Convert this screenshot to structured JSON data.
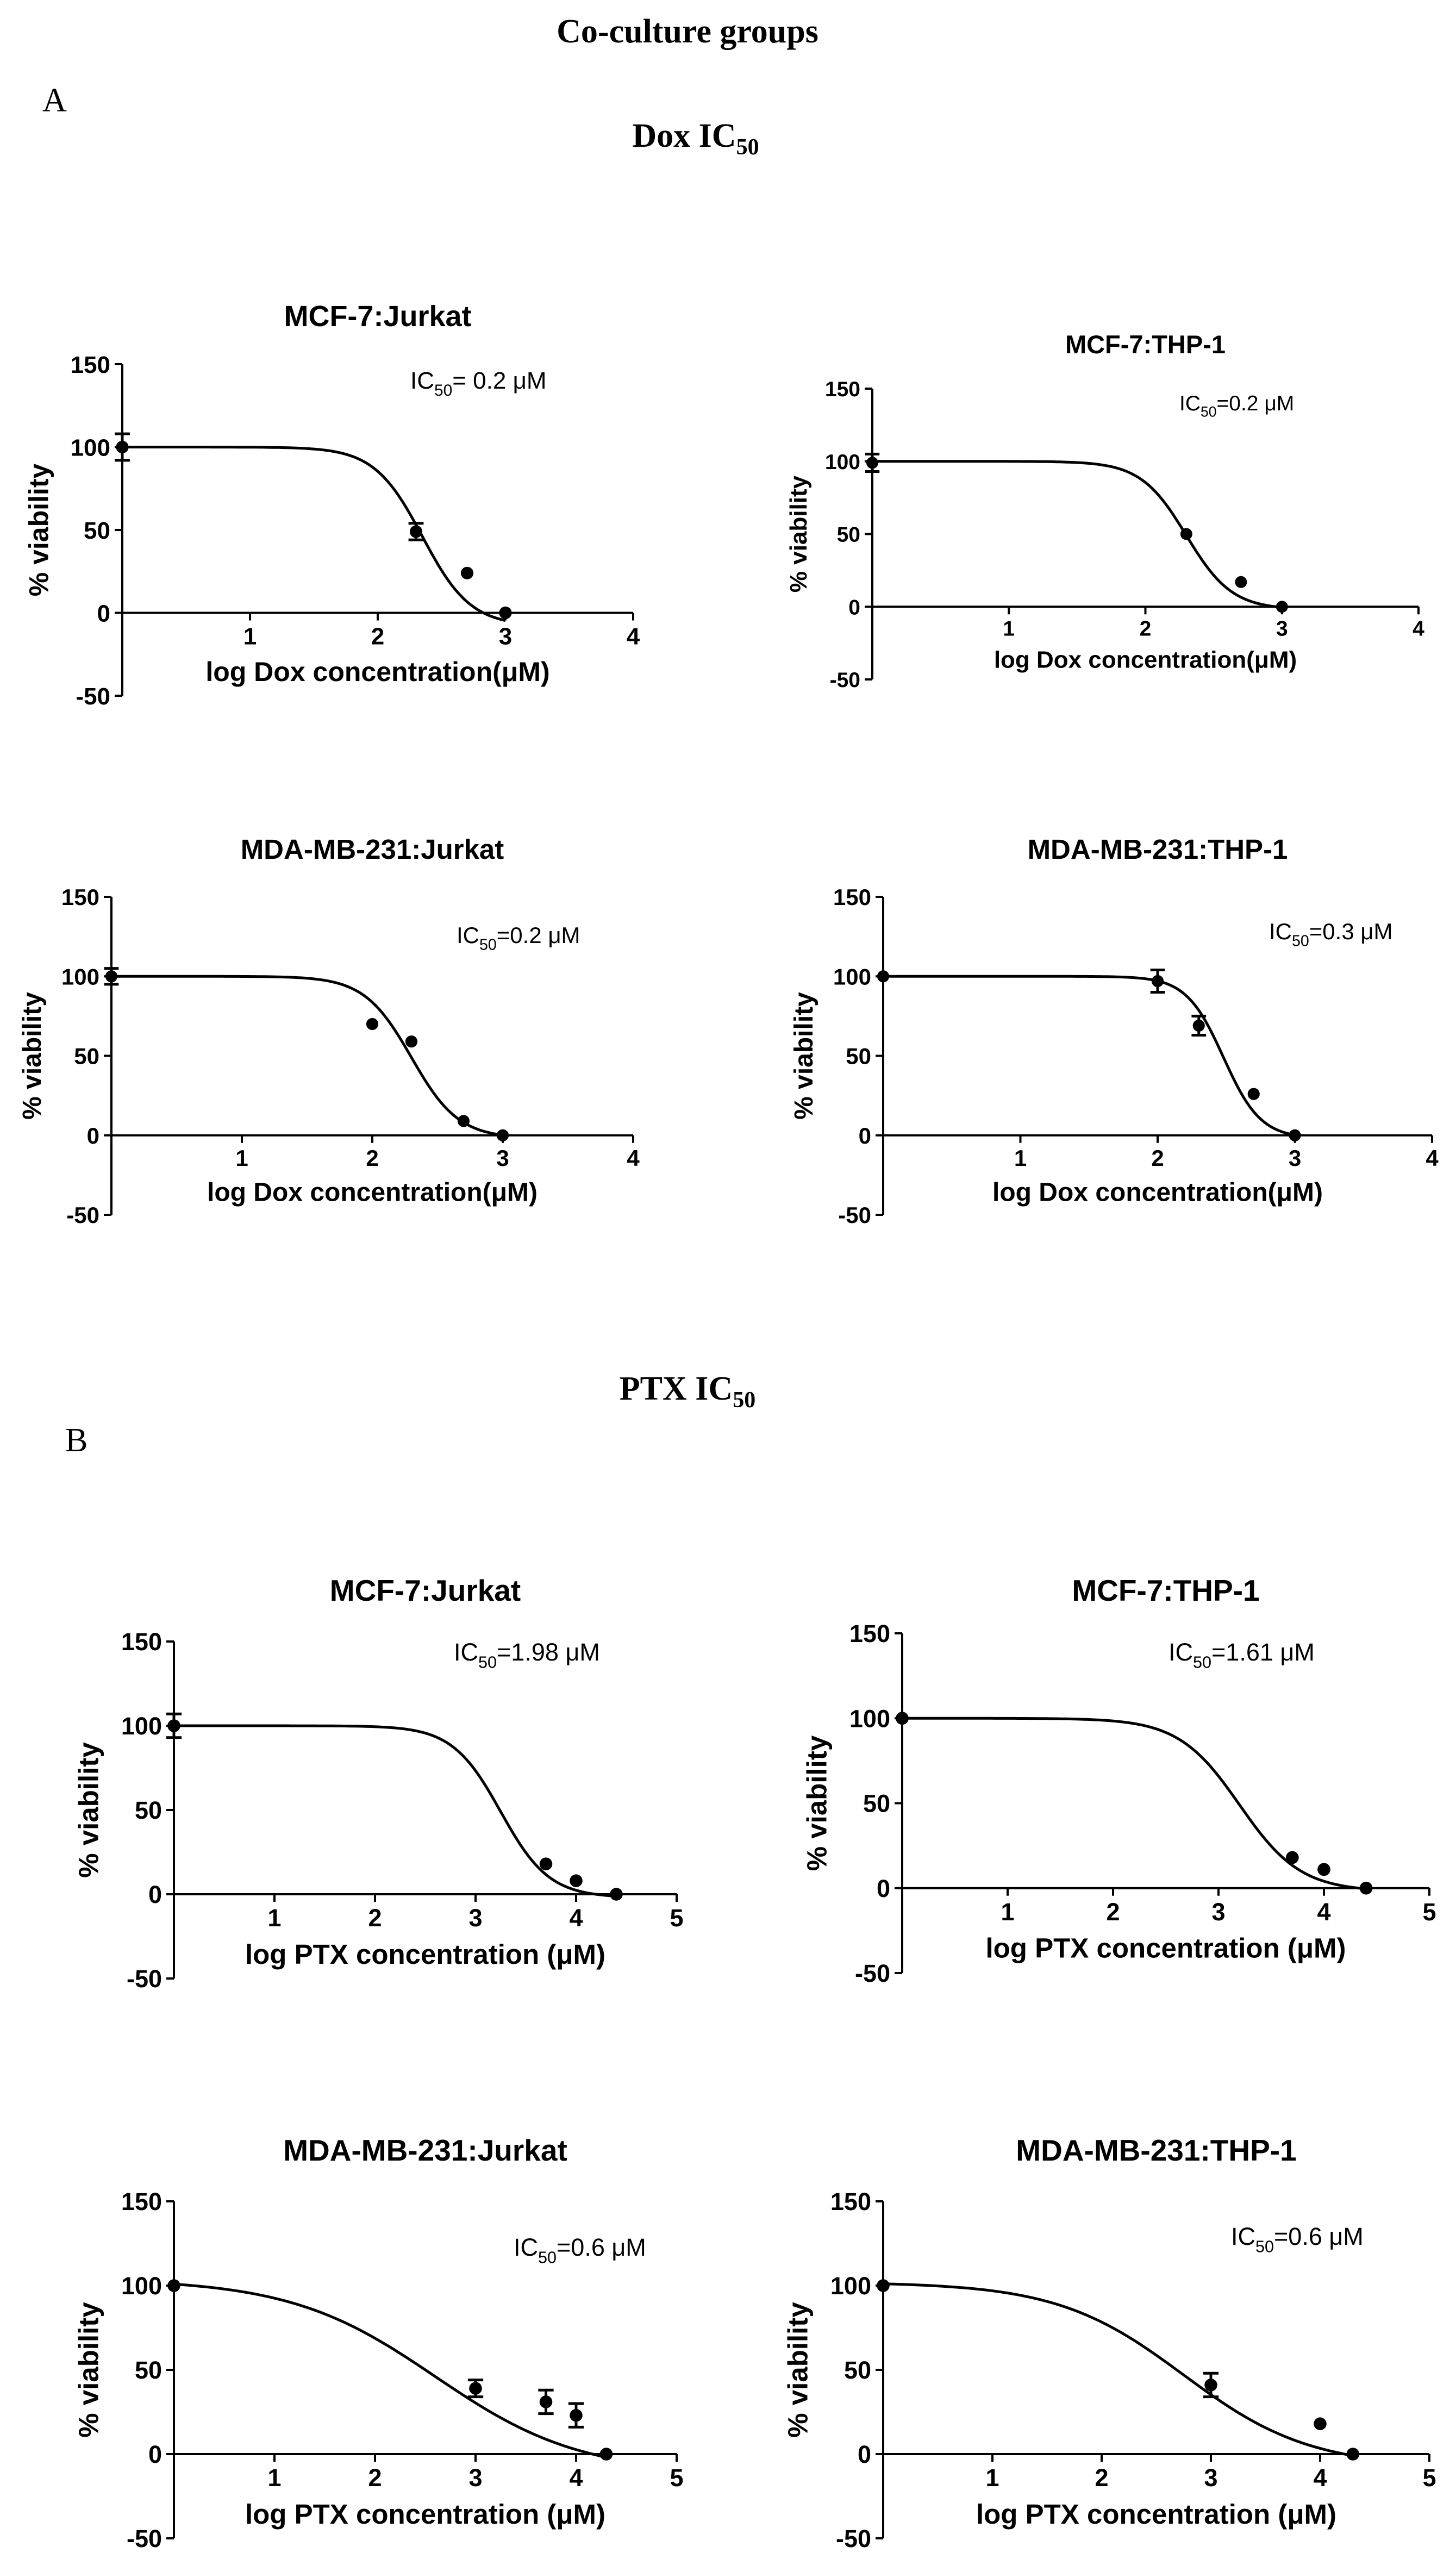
{
  "figure": {
    "title": "Co-culture groups",
    "sections": [
      {
        "label": "A",
        "heading": "Dox IC",
        "heading_sub": "50"
      },
      {
        "label": "B",
        "heading": "PTX IC",
        "heading_sub": "50"
      }
    ]
  },
  "chart_data": [
    {
      "id": "dox-mcf7-jurkat",
      "type": "scatter",
      "fit": "sigmoid",
      "title": "MCF-7:Jurkat",
      "xlabel": "log Dox concentration(μM)",
      "ylabel": "% viability",
      "ic50_label": "IC",
      "ic50_sub": "50",
      "ic50_value": "= 0.2 μM",
      "xlim": [
        0,
        4
      ],
      "ylim": [
        -50,
        150
      ],
      "xticks": [
        1,
        2,
        3,
        4
      ],
      "yticks": [
        -50,
        0,
        50,
        100,
        150
      ],
      "points": [
        {
          "x": 0,
          "y": 100,
          "err": 8
        },
        {
          "x": 2.3,
          "y": 49,
          "err": 5
        },
        {
          "x": 2.7,
          "y": 24,
          "err": 0
        },
        {
          "x": 3.0,
          "y": 0,
          "err": 0
        }
      ],
      "curve": {
        "top": 100,
        "bottom": -8,
        "ec50": 2.35,
        "slope": 2.3,
        "xmax": 3.0
      }
    },
    {
      "id": "dox-mcf7-thp1",
      "type": "scatter",
      "fit": "sigmoid",
      "title": "MCF-7:THP-1",
      "xlabel": "log Dox concentration(μM)",
      "ylabel": "% viability",
      "ic50_label": "IC",
      "ic50_sub": "50",
      "ic50_value": "=0.2 μM",
      "xlim": [
        0,
        4
      ],
      "ylim": [
        -50,
        150
      ],
      "xticks": [
        1,
        2,
        3,
        4
      ],
      "yticks": [
        -50,
        0,
        50,
        100,
        150
      ],
      "points": [
        {
          "x": 0,
          "y": 99,
          "err": 6
        },
        {
          "x": 2.3,
          "y": 50,
          "err": 0
        },
        {
          "x": 2.7,
          "y": 17,
          "err": 0
        },
        {
          "x": 3.0,
          "y": 0,
          "err": 0
        }
      ],
      "curve": {
        "top": 100,
        "bottom": -2,
        "ec50": 2.3,
        "slope": 2.6,
        "xmax": 3.0
      }
    },
    {
      "id": "dox-mda-jurkat",
      "type": "scatter",
      "fit": "sigmoid",
      "title": "MDA-MB-231:Jurkat",
      "xlabel": "log Dox concentration(μM)",
      "ylabel": "% viability",
      "ic50_label": "IC",
      "ic50_sub": "50",
      "ic50_value": "=0.2 μM",
      "xlim": [
        0,
        4
      ],
      "ylim": [
        -50,
        150
      ],
      "xticks": [
        1,
        2,
        3,
        4
      ],
      "yticks": [
        -50,
        0,
        50,
        100,
        150
      ],
      "points": [
        {
          "x": 0,
          "y": 100,
          "err": 5
        },
        {
          "x": 2.0,
          "y": 70,
          "err": 0
        },
        {
          "x": 2.3,
          "y": 59,
          "err": 0
        },
        {
          "x": 2.7,
          "y": 9,
          "err": 0
        },
        {
          "x": 3.0,
          "y": 0,
          "err": 0
        }
      ],
      "curve": {
        "top": 100,
        "bottom": -2,
        "ec50": 2.3,
        "slope": 2.4,
        "xmax": 3.0
      }
    },
    {
      "id": "dox-mda-thp1",
      "type": "scatter",
      "fit": "sigmoid",
      "title": "MDA-MB-231:THP-1",
      "xlabel": "log Dox concentration(μM)",
      "ylabel": "% viability",
      "ic50_label": "IC",
      "ic50_sub": "50",
      "ic50_value": "=0.3 μM",
      "xlim": [
        0,
        4
      ],
      "ylim": [
        -50,
        150
      ],
      "xticks": [
        1,
        2,
        3,
        4
      ],
      "yticks": [
        -50,
        0,
        50,
        100,
        150
      ],
      "points": [
        {
          "x": 0,
          "y": 100,
          "err": 0
        },
        {
          "x": 2.0,
          "y": 97,
          "err": 7
        },
        {
          "x": 2.3,
          "y": 69,
          "err": 6
        },
        {
          "x": 2.7,
          "y": 26,
          "err": 0
        },
        {
          "x": 3.0,
          "y": 0,
          "err": 0
        }
      ],
      "curve": {
        "top": 100,
        "bottom": -2,
        "ec50": 2.48,
        "slope": 3.2,
        "xmax": 3.0
      }
    },
    {
      "id": "ptx-mcf7-jurkat",
      "type": "scatter",
      "fit": "sigmoid",
      "title": "MCF-7:Jurkat",
      "xlabel": "log PTX concentration (μM)",
      "ylabel": "% viability",
      "ic50_label": "IC",
      "ic50_sub": "50",
      "ic50_value": "=1.98 μM",
      "xlim": [
        0,
        5
      ],
      "ylim": [
        -50,
        150
      ],
      "xticks": [
        1,
        2,
        3,
        4,
        5
      ],
      "yticks": [
        -50,
        0,
        50,
        100,
        150
      ],
      "points": [
        {
          "x": 0,
          "y": 100,
          "err": 7
        },
        {
          "x": 3.7,
          "y": 18,
          "err": 0
        },
        {
          "x": 4.0,
          "y": 8,
          "err": 0
        },
        {
          "x": 4.4,
          "y": 0,
          "err": 0
        }
      ],
      "curve": {
        "top": 100,
        "bottom": -2,
        "ec50": 3.25,
        "slope": 1.8,
        "xmax": 4.4
      }
    },
    {
      "id": "ptx-mcf7-thp1",
      "type": "scatter",
      "fit": "sigmoid",
      "title": "MCF-7:THP-1",
      "xlabel": "log PTX concentration (μM)",
      "ylabel": "% viability",
      "ic50_label": "IC",
      "ic50_sub": "50",
      "ic50_value": "=1.61 μM",
      "xlim": [
        0,
        5
      ],
      "ylim": [
        -50,
        150
      ],
      "xticks": [
        1,
        2,
        3,
        4,
        5
      ],
      "yticks": [
        -50,
        0,
        50,
        100,
        150
      ],
      "points": [
        {
          "x": 0,
          "y": 100,
          "err": 0
        },
        {
          "x": 3.7,
          "y": 18,
          "err": 0
        },
        {
          "x": 4.0,
          "y": 11,
          "err": 0
        },
        {
          "x": 4.4,
          "y": 0,
          "err": 0
        }
      ],
      "curve": {
        "top": 100,
        "bottom": -2,
        "ec50": 3.2,
        "slope": 1.5,
        "xmax": 4.4
      }
    },
    {
      "id": "ptx-mda-jurkat",
      "type": "scatter",
      "fit": "sigmoid",
      "title": "MDA-MB-231:Jurkat",
      "xlabel": "log PTX concentration (μM)",
      "ylabel": "% viability",
      "ic50_label": "IC",
      "ic50_sub": "50",
      "ic50_value": "=0.6 μM",
      "xlim": [
        0,
        5
      ],
      "ylim": [
        -50,
        150
      ],
      "xticks": [
        1,
        2,
        3,
        4,
        5
      ],
      "yticks": [
        -50,
        0,
        50,
        100,
        150
      ],
      "points": [
        {
          "x": 0,
          "y": 100,
          "err": 0
        },
        {
          "x": 3.0,
          "y": 39,
          "err": 5
        },
        {
          "x": 3.7,
          "y": 31,
          "err": 7
        },
        {
          "x": 4.0,
          "y": 23,
          "err": 7
        },
        {
          "x": 4.3,
          "y": 0,
          "err": 0
        }
      ],
      "curve": {
        "top": 104,
        "bottom": -12,
        "ec50": 2.6,
        "slope": 0.6,
        "xmax": 4.3
      }
    },
    {
      "id": "ptx-mda-thp1",
      "type": "scatter",
      "fit": "sigmoid",
      "title": "MDA-MB-231:THP-1",
      "xlabel": "log PTX concentration (μM)",
      "ylabel": "% viability",
      "ic50_label": "IC",
      "ic50_sub": "50",
      "ic50_value": "=0.6 μM",
      "xlim": [
        0,
        5
      ],
      "ylim": [
        -50,
        150
      ],
      "xticks": [
        1,
        2,
        3,
        4,
        5
      ],
      "yticks": [
        -50,
        0,
        50,
        100,
        150
      ],
      "points": [
        {
          "x": 0,
          "y": 100,
          "err": 0
        },
        {
          "x": 3.0,
          "y": 41,
          "err": 7
        },
        {
          "x": 4.0,
          "y": 18,
          "err": 0
        },
        {
          "x": 4.3,
          "y": 0,
          "err": 0
        }
      ],
      "curve": {
        "top": 102,
        "bottom": -8,
        "ec50": 2.75,
        "slope": 0.75,
        "xmax": 4.3
      }
    }
  ]
}
